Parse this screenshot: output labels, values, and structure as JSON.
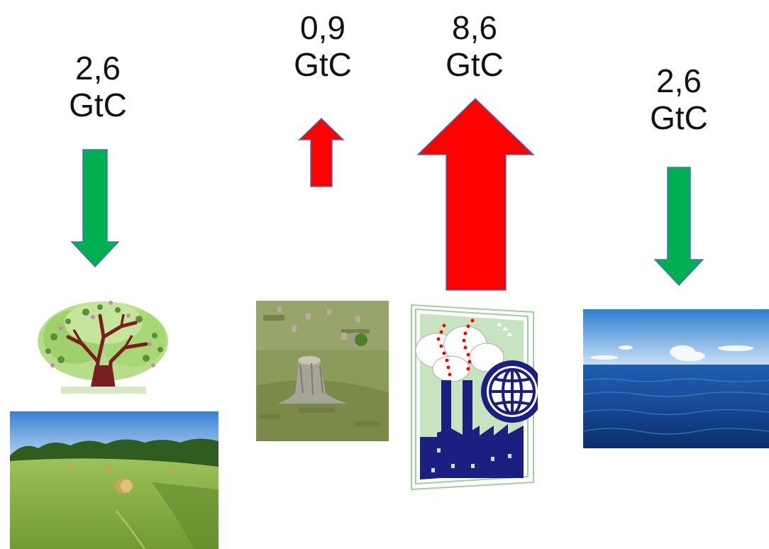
{
  "fluxes": [
    {
      "value": "2,6",
      "unit": "GtC",
      "direction": "down",
      "color": "#00b050"
    },
    {
      "value": "0,9",
      "unit": "GtC",
      "direction": "up",
      "color": "#ff0000"
    },
    {
      "value": "8,6",
      "unit": "GtC",
      "direction": "up",
      "color": "#ff0000"
    },
    {
      "value": "2,6",
      "unit": "GtC",
      "direction": "down",
      "color": "#00b050"
    }
  ],
  "images": [
    "tree-picture",
    "meadow-photo",
    "tree-stumps-photo",
    "factory-globe-clipart",
    "ocean-photo"
  ]
}
